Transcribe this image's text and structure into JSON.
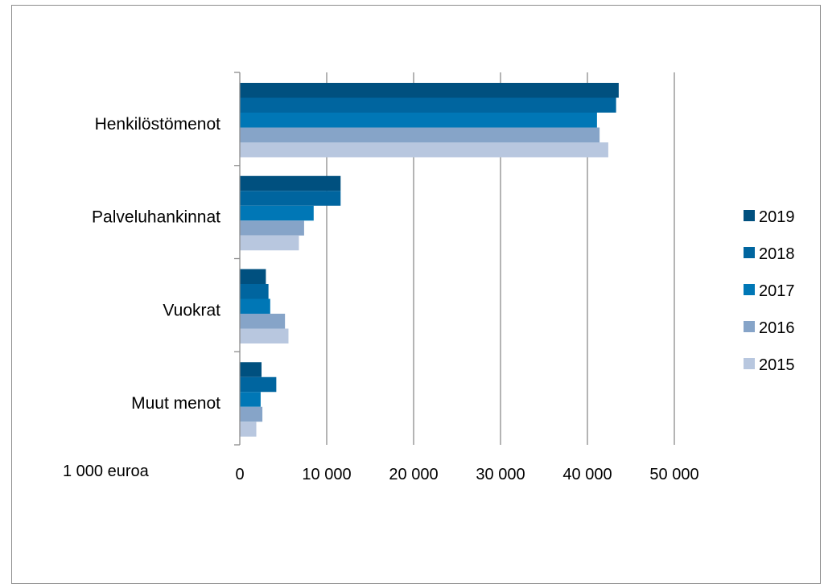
{
  "chart_data": {
    "type": "bar",
    "orientation": "horizontal",
    "title": "",
    "unit_label": "1 000 euroa",
    "categories": [
      "Henkilöstömenot",
      "Palveluhankinnat",
      "Vuokrat",
      "Muut menot"
    ],
    "series": [
      {
        "name": "2019",
        "color": "#00507f",
        "values": [
          43600,
          11600,
          3000,
          2500
        ]
      },
      {
        "name": "2018",
        "color": "#00659f",
        "values": [
          43300,
          11600,
          3300,
          4200
        ]
      },
      {
        "name": "2017",
        "color": "#0077b6",
        "values": [
          41100,
          8500,
          3500,
          2400
        ]
      },
      {
        "name": "2016",
        "color": "#86a4c8",
        "values": [
          41400,
          7400,
          5200,
          2600
        ]
      },
      {
        "name": "2015",
        "color": "#b8c7df",
        "values": [
          42400,
          6800,
          5600,
          1900
        ]
      }
    ],
    "x_ticks": [
      0,
      10000,
      20000,
      30000,
      40000,
      50000
    ],
    "x_tick_labels": [
      "0",
      "10 000",
      "20 000",
      "30 000",
      "40 000",
      "50 000"
    ],
    "xlim": [
      0,
      50000
    ],
    "grid": true,
    "legend_position": "right"
  }
}
